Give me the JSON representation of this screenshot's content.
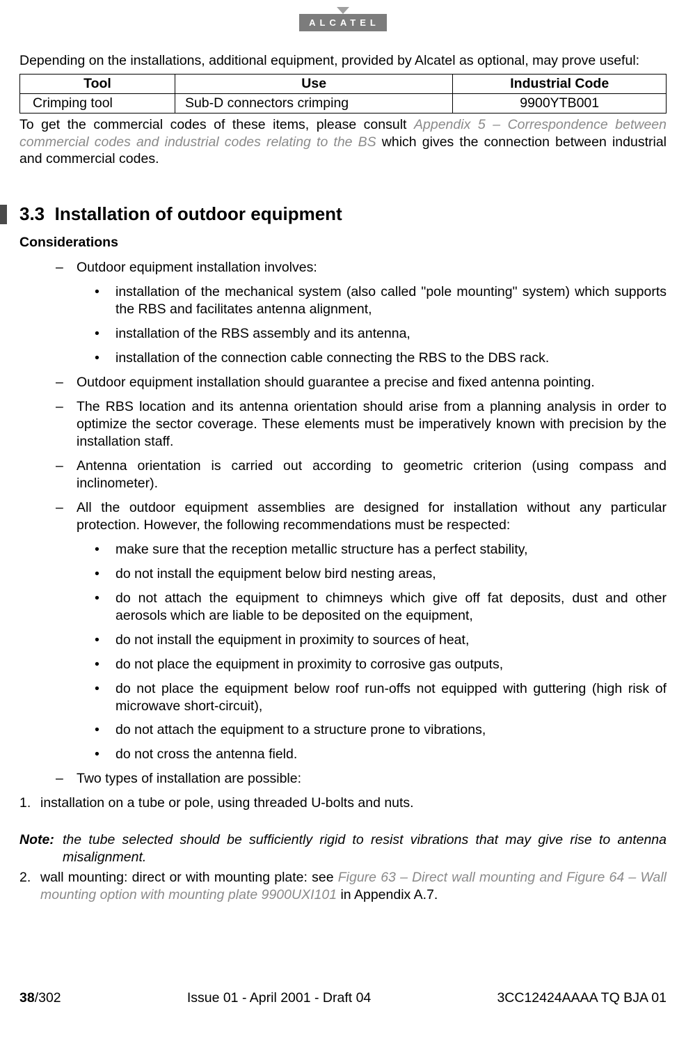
{
  "brand": "ALCATEL",
  "intro": "Depending on the installations, additional equipment, provided by Alcatel as optional, may prove useful:",
  "table": {
    "headers": [
      "Tool",
      "Use",
      "Industrial Code"
    ],
    "row": [
      "Crimping tool",
      "Sub-D connectors crimping",
      "9900YTB001"
    ]
  },
  "afterTable": {
    "pre": "To get the commercial codes of these items, please consult ",
    "ref": "Appendix 5 – Correspondence between commercial codes and industrial codes relating to the BS",
    "post": " which gives the connection between industrial and commercial codes."
  },
  "section": {
    "number": "3.3",
    "title": "Installation of outdoor equipment"
  },
  "sub1": "Considerations",
  "d1": "Outdoor equipment installation involves:",
  "d1b1": "installation of the mechanical system (also called \"pole mounting\" system) which supports the RBS and facilitates antenna alignment,",
  "d1b2": "installation of the RBS assembly and its antenna,",
  "d1b3": "installation of the connection cable connecting the RBS to the DBS rack.",
  "d2": "Outdoor equipment installation should guarantee a precise and fixed antenna pointing.",
  "d3": "The RBS location and its antenna orientation should arise from a planning analysis in order to optimize the sector coverage. These elements must be imperatively known with precision by the installation staff.",
  "d4": "Antenna orientation is carried out according to geometric criterion (using compass and inclinometer).",
  "d5": "All the outdoor equipment assemblies are designed for installation without any particular protection. However, the following recommendations must be respected:",
  "d5b1": "make sure that the reception metallic structure has a perfect stability,",
  "d5b2": "do not install the equipment below bird nesting areas,",
  "d5b3": "do not attach the equipment to chimneys which give off fat deposits, dust and other aerosols which are liable to be deposited on the equipment,",
  "d5b4": "do not install the equipment in proximity to sources of heat,",
  "d5b5": "do not place the equipment in proximity to corrosive gas outputs,",
  "d5b6": "do not place the equipment below roof run-offs not equipped with guttering (high risk of microwave short-circuit),",
  "d5b7": "do not attach the equipment to a structure prone to vibrations,",
  "d5b8": "do not cross the antenna field.",
  "d6": "Two types of installation are possible:",
  "num1": "installation on a tube or pole, using threaded U-bolts and nuts.",
  "note": {
    "label": "Note:",
    "body": "the tube selected should be sufficiently rigid to resist vibrations that may give rise to antenna misalignment."
  },
  "num2": {
    "pre": "wall mounting: direct or with mounting plate: see ",
    "ref": "Figure 63 – Direct wall mounting and Figure 64 – Wall mounting option with mounting plate 9900UXI101",
    "post": " in Appendix A.7."
  },
  "footer": {
    "pageCurrent": "38",
    "pageTotal": "/302",
    "center": "Issue 01 - April 2001 - Draft 04",
    "right": "3CC12424AAAA TQ BJA 01"
  }
}
